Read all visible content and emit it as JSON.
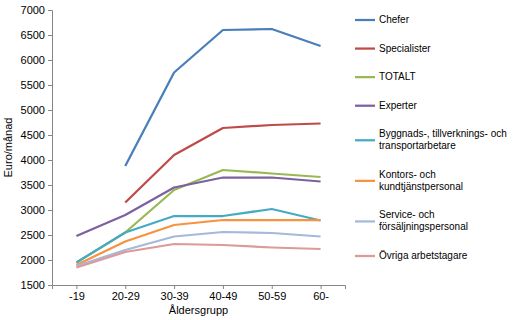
{
  "chart_data": {
    "type": "line",
    "x_label": "Åldersgrupp",
    "y_label": "Euro/månad",
    "categories": [
      "-19",
      "20-29",
      "30-39",
      "40-49",
      "50-59",
      "60-"
    ],
    "ylim": [
      1500,
      7000
    ],
    "yticks": [
      1500,
      2000,
      2500,
      3000,
      3500,
      4000,
      4500,
      5000,
      5500,
      6000,
      6500,
      7000
    ],
    "grid": false,
    "legend": "right",
    "series": [
      {
        "name": "Chefer",
        "color": "#4a7ebb",
        "values": [
          null,
          3880,
          5750,
          6600,
          6620,
          6280
        ]
      },
      {
        "name": "Specialister",
        "color": "#be4b48",
        "values": [
          null,
          3150,
          4100,
          4640,
          4700,
          4730
        ]
      },
      {
        "name": "TOTALT",
        "color": "#98b954",
        "values": [
          1950,
          2550,
          3400,
          3800,
          3730,
          3660
        ]
      },
      {
        "name": "Experter",
        "color": "#7d60a0",
        "values": [
          2480,
          2900,
          3450,
          3650,
          3650,
          3570
        ]
      },
      {
        "name": "Byggnads-, tillverknings- och transportarbetare",
        "color": "#46aac5",
        "values": [
          1950,
          2550,
          2880,
          2880,
          3020,
          2790
        ]
      },
      {
        "name": "Kontors- och kundtjänstpersonal",
        "color": "#f69240",
        "values": [
          1900,
          2370,
          2700,
          2800,
          2800,
          2800
        ]
      },
      {
        "name": "Service- och försäljningspersonal",
        "color": "#a5b9db",
        "values": [
          1880,
          2200,
          2470,
          2560,
          2540,
          2470
        ]
      },
      {
        "name": "Övriga arbetstagare",
        "color": "#dc9a98",
        "values": [
          1850,
          2160,
          2320,
          2300,
          2250,
          2220
        ]
      }
    ]
  }
}
